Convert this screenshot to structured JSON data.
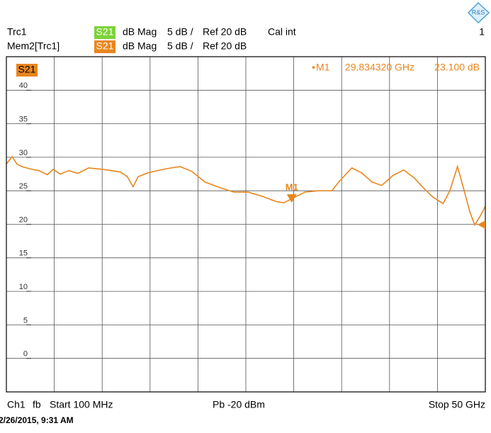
{
  "header": {
    "rows": [
      {
        "trace": "Trc1",
        "param": "S21",
        "format": "dB Mag",
        "scale": "5 dB /",
        "ref": "Ref 20 dB",
        "cal": "Cal int",
        "channel_no": "1"
      },
      {
        "trace": "Mem2[Trc1]",
        "param": "S21",
        "format": "dB Mag",
        "scale": "5 dB /",
        "ref": "Ref 20 dB"
      }
    ]
  },
  "chart_data": {
    "type": "line",
    "legend": "S21",
    "xlim": [
      0.1,
      50
    ],
    "ylim": [
      -5,
      45
    ],
    "yticks": [
      0,
      5,
      10,
      15,
      20,
      25,
      30,
      35,
      40
    ],
    "grid": true,
    "series": [
      {
        "name": "Mem2[Trc1]",
        "color": "#e8861e",
        "x": [
          0.1,
          0.69,
          1.2,
          1.72,
          2.76,
          3.5,
          4.38,
          4.97,
          5.71,
          6.6,
          7.55,
          8.66,
          10.14,
          11.98,
          12.7,
          13.3,
          13.83,
          14.9,
          16.8,
          18.2,
          19.4,
          20.8,
          22.3,
          23.8,
          25.3,
          26.7,
          28.2,
          29.0,
          30.1,
          31.2,
          32.6,
          34.0,
          34.9,
          36.1,
          37.1,
          38.2,
          39.2,
          40.4,
          41.5,
          42.6,
          43.7,
          44.6,
          45.6,
          46.3,
          47.1,
          47.8,
          48.4,
          48.9,
          49.5,
          50.0
        ],
        "values": [
          29.0,
          30.1,
          29.0,
          28.6,
          28.2,
          28.0,
          27.4,
          28.2,
          27.5,
          28.0,
          27.6,
          28.4,
          28.2,
          27.8,
          27.1,
          25.6,
          27.1,
          27.7,
          28.3,
          28.6,
          27.9,
          26.3,
          25.5,
          24.8,
          24.8,
          24.2,
          23.4,
          23.2,
          24.0,
          24.8,
          25.0,
          25.0,
          26.6,
          28.4,
          27.7,
          26.3,
          25.8,
          27.3,
          28.1,
          26.9,
          25.2,
          24.0,
          23.1,
          25.0,
          28.6,
          25.0,
          21.8,
          19.9,
          21.3,
          22.7
        ]
      }
    ],
    "markers": [
      {
        "name": "M1",
        "x": 29.83432,
        "y": 23.1,
        "x_label": "29.834320 GHz",
        "y_label": "23.100 dB"
      }
    ]
  },
  "footer": {
    "channel": "Ch1",
    "mode": "fb",
    "start": "Start 100 MHz",
    "power": "Pb -20 dBm",
    "stop": "Stop 50 GHz",
    "timestamp": "2/26/2015, 9:31 AM"
  }
}
